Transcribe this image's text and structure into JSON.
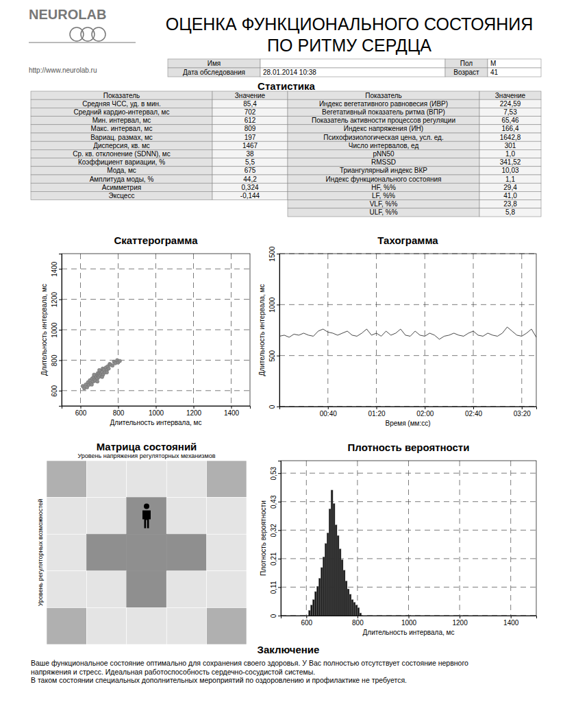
{
  "header": {
    "logo": "NEUROLAB",
    "url": "http://www.neurolab.ru",
    "title": [
      "ОЦЕНКА ФУНКЦИОНАЛЬНОГО СОСТОЯНИЯ",
      "ПО РИТМУ СЕРДЦА"
    ],
    "name_label": "Имя",
    "sex_label": "Пол",
    "sex": "М",
    "date_label": "Дата обследования",
    "date": "28.01.2014 10:38",
    "age_label": "Возраст",
    "age": "41"
  },
  "statistics": {
    "title": "Статистика",
    "columns": [
      "Показатель",
      "Значение",
      "Показатель",
      "Значение"
    ],
    "left": [
      [
        "Средняя ЧСС, уд. в мин.",
        "85,4"
      ],
      [
        "Средний кардио-интервал, мс",
        "702"
      ],
      [
        "Мин. интервал, мс",
        "612"
      ],
      [
        "Макс. интервал, мс",
        "809"
      ],
      [
        "Вариац. размах, мс",
        "197"
      ],
      [
        "Дисперсия, кв. мс",
        "1467"
      ],
      [
        "Ср. кв. отклонение (SDNN), мс",
        "38"
      ],
      [
        "Коэффициент вариации, %",
        "5,5"
      ],
      [
        "Мода, мс",
        "675"
      ],
      [
        "Амплитуда моды, %",
        "44,2"
      ],
      [
        "Асимметрия",
        "0,324"
      ],
      [
        "Эксцесс",
        "-0,144"
      ]
    ],
    "right": [
      [
        "Индекс вегетативного равновесия (ИВР)",
        "224,59"
      ],
      [
        "Вегетативный показатель ритма (ВПР)",
        "7,53"
      ],
      [
        "Показатель активности процессов регуляции",
        "65,46"
      ],
      [
        "Индекс напряжения (ИН)",
        "166,4"
      ],
      [
        "Психофизиологическая цена, усл. ед.",
        "1642,8"
      ],
      [
        "Число интервалов, ед",
        "301"
      ],
      [
        "pNN50",
        "1,0"
      ],
      [
        "RMSSD",
        "341,52"
      ],
      [
        "Триангулярный индекс ВКР",
        "10,03"
      ],
      [
        "Индекс функционального состояния",
        "1,1"
      ],
      [
        "HF, %%",
        "29,4"
      ],
      [
        "LF, %%",
        "41,0"
      ],
      [
        "VLF, %%",
        "23,8"
      ],
      [
        "ULF, %%",
        "5,8"
      ]
    ]
  },
  "chart_data": [
    {
      "type": "scatter",
      "title": "Скаттерограмма",
      "x_label": "Длительность интервала, мс",
      "y_label": "Длительность интервала, мс",
      "x": [
        612,
        620,
        628,
        635,
        640,
        645,
        650,
        655,
        660,
        662,
        668,
        670,
        675,
        678,
        680,
        684,
        688,
        690,
        692,
        695,
        698,
        700,
        702,
        705,
        708,
        710,
        714,
        718,
        720,
        725,
        730,
        735,
        740,
        745,
        750,
        755,
        760,
        770,
        778,
        785,
        795,
        800,
        809,
        690,
        700,
        672,
        715,
        740
      ],
      "y": [
        630,
        615,
        640,
        622,
        655,
        638,
        668,
        648,
        640,
        680,
        660,
        690,
        672,
        700,
        665,
        690,
        705,
        680,
        715,
        698,
        690,
        712,
        725,
        700,
        730,
        712,
        722,
        745,
        705,
        738,
        720,
        752,
        735,
        760,
        745,
        775,
        770,
        765,
        790,
        780,
        800,
        785,
        795,
        660,
        735,
        705,
        690,
        720
      ],
      "color": "#8c8c8c",
      "marker": "circle",
      "xlim": [
        500,
        1500
      ],
      "ylim": [
        500,
        1500
      ],
      "xticks": [
        600,
        800,
        1000,
        1200,
        1400
      ],
      "yticks": [
        600,
        800,
        1000,
        1200,
        1400
      ],
      "grid": true
    },
    {
      "type": "line",
      "title": "Тахограмма",
      "x_label": "Время (мм:сс)",
      "y_label": "Длительность интервала, мс",
      "x": [
        0,
        4,
        8,
        12,
        16,
        20,
        24,
        28,
        32,
        36,
        40,
        44,
        48,
        52,
        56,
        60,
        64,
        68,
        72,
        76,
        80,
        84,
        88,
        92,
        96,
        100,
        104,
        108,
        112,
        116,
        120,
        124,
        128,
        132,
        136,
        140,
        144,
        148,
        152,
        156,
        160,
        164,
        168,
        172,
        176,
        180,
        184,
        188,
        192,
        196,
        200,
        204,
        208,
        212
      ],
      "values": [
        690,
        700,
        680,
        710,
        700,
        720,
        700,
        690,
        740,
        760,
        730,
        720,
        700,
        720,
        740,
        700,
        690,
        720,
        760,
        700,
        720,
        690,
        740,
        700,
        720,
        760,
        700,
        690,
        740,
        700,
        690,
        720,
        700,
        660,
        690,
        700,
        720,
        700,
        690,
        720,
        740,
        700,
        690,
        720,
        700,
        690,
        720,
        780,
        740,
        700,
        690,
        720,
        760,
        680
      ],
      "color": "#333333",
      "xlim": [
        0,
        212
      ],
      "ylim": [
        0,
        1500
      ],
      "xticks": [
        {
          "value": 40,
          "label": "00:40"
        },
        {
          "value": 80,
          "label": "01:20"
        },
        {
          "value": 120,
          "label": "02:00"
        },
        {
          "value": 160,
          "label": "02:40"
        },
        {
          "value": 200,
          "label": "03:20"
        }
      ],
      "yticks": [
        0,
        500,
        1000,
        1500
      ],
      "grid": true
    },
    {
      "type": "histogram",
      "title": "Плотность вероятности",
      "x_label": "Длительность интервала, мс",
      "y_label": "Плотность вероятности",
      "bins": [
        608,
        616,
        624,
        632,
        640,
        648,
        656,
        664,
        672,
        680,
        688,
        696,
        704,
        712,
        720,
        728,
        736,
        744,
        752,
        760,
        768,
        776,
        784,
        792,
        800,
        808,
        816
      ],
      "values": [
        0.02,
        0.04,
        0.06,
        0.09,
        0.11,
        0.14,
        0.18,
        0.22,
        0.27,
        0.31,
        0.4,
        0.47,
        0.42,
        0.34,
        0.3,
        0.25,
        0.21,
        0.17,
        0.13,
        0.1,
        0.08,
        0.06,
        0.05,
        0.04,
        0.03,
        0.01
      ],
      "color": "#1a1a1a",
      "xlim": [
        500,
        1500
      ],
      "ylim": [
        0,
        0.58
      ],
      "xticks": [
        600,
        800,
        1000,
        1200,
        1400
      ],
      "yticks": [
        0,
        {
          "value": 0.1067,
          "label": "0,11"
        },
        {
          "value": 0.2133,
          "label": "0,21"
        },
        {
          "value": 0.32,
          "label": "0,32"
        },
        {
          "value": 0.4267,
          "label": "0,43"
        },
        {
          "value": 0.5333,
          "label": "0,53"
        }
      ],
      "grid": true
    }
  ],
  "matrix": {
    "title": "Матрица состояний",
    "x_label": "Уровень напряжения регуляторных механизмов",
    "y_label": "Уровень регуляторных возможностей",
    "state_cell": [
      1,
      2
    ]
  },
  "conclusion": {
    "title": "Заключение",
    "lines": [
      "Ваше функциональное состояние оптимально для сохранения своего здоровья. У Вас полностью отсутствует состояние нервного",
      "напряжения и стресс. Идеальная работоспособность сердечно-сосудистой системы.",
      "В таком состоянии специальных дополнительных мероприятий по оздоровлению и профилактике не требуется."
    ]
  }
}
